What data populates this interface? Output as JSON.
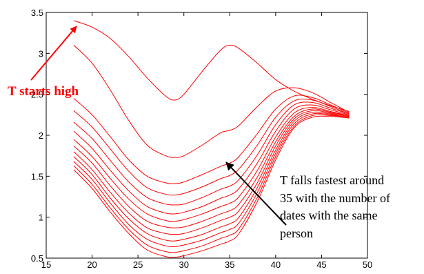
{
  "chart_data": {
    "type": "line",
    "title": "",
    "xlabel": "",
    "ylabel": "",
    "xlim": [
      15,
      50
    ],
    "ylim": [
      0.5,
      3.5
    ],
    "x_ticks": [
      "15",
      "20",
      "25",
      "30",
      "35",
      "40",
      "45",
      "50"
    ],
    "y_ticks": [
      "0.5",
      "1",
      "1.5",
      "2",
      "2.5",
      "3",
      "3.5"
    ],
    "grid": false,
    "legend": "none",
    "series_color": "#ff0000",
    "x": [
      18,
      20,
      22,
      24,
      26,
      28,
      29,
      30,
      32,
      34,
      35,
      36,
      38,
      40,
      42,
      44,
      46,
      48
    ],
    "series": [
      {
        "values": [
          3.4,
          3.32,
          3.18,
          2.96,
          2.7,
          2.48,
          2.43,
          2.5,
          2.78,
          3.04,
          3.1,
          3.06,
          2.88,
          2.68,
          2.54,
          2.44,
          2.36,
          2.29
        ]
      },
      {
        "values": [
          3.1,
          2.88,
          2.55,
          2.18,
          1.88,
          1.75,
          1.73,
          1.75,
          1.88,
          2.03,
          2.06,
          2.12,
          2.35,
          2.54,
          2.58,
          2.52,
          2.4,
          2.28
        ]
      },
      {
        "values": [
          2.45,
          2.25,
          1.98,
          1.7,
          1.5,
          1.42,
          1.41,
          1.43,
          1.52,
          1.62,
          1.66,
          1.74,
          2.02,
          2.32,
          2.48,
          2.46,
          2.37,
          2.27
        ]
      },
      {
        "values": [
          2.3,
          2.1,
          1.83,
          1.56,
          1.36,
          1.28,
          1.27,
          1.29,
          1.37,
          1.47,
          1.51,
          1.59,
          1.88,
          2.22,
          2.42,
          2.43,
          2.35,
          2.26
        ]
      },
      {
        "values": [
          2.16,
          1.96,
          1.69,
          1.43,
          1.24,
          1.16,
          1.15,
          1.16,
          1.24,
          1.34,
          1.38,
          1.46,
          1.76,
          2.13,
          2.37,
          2.4,
          2.33,
          2.26
        ]
      },
      {
        "values": [
          2.05,
          1.84,
          1.57,
          1.32,
          1.13,
          1.05,
          1.04,
          1.06,
          1.13,
          1.23,
          1.27,
          1.35,
          1.66,
          2.05,
          2.32,
          2.37,
          2.31,
          2.25
        ]
      },
      {
        "values": [
          1.95,
          1.74,
          1.47,
          1.22,
          1.04,
          0.96,
          0.95,
          0.97,
          1.04,
          1.13,
          1.17,
          1.25,
          1.57,
          1.98,
          2.27,
          2.34,
          2.29,
          2.24
        ]
      },
      {
        "values": [
          1.87,
          1.66,
          1.38,
          1.13,
          0.95,
          0.88,
          0.87,
          0.88,
          0.95,
          1.04,
          1.08,
          1.16,
          1.49,
          1.92,
          2.23,
          2.32,
          2.28,
          2.24
        ]
      },
      {
        "values": [
          1.8,
          1.58,
          1.3,
          1.05,
          0.87,
          0.8,
          0.79,
          0.8,
          0.87,
          0.96,
          1.0,
          1.08,
          1.42,
          1.87,
          2.2,
          2.3,
          2.27,
          2.23
        ]
      },
      {
        "values": [
          1.74,
          1.52,
          1.23,
          0.98,
          0.8,
          0.72,
          0.71,
          0.73,
          0.79,
          0.88,
          0.92,
          1.0,
          1.36,
          1.82,
          2.17,
          2.28,
          2.26,
          2.23
        ]
      },
      {
        "values": [
          1.68,
          1.46,
          1.17,
          0.91,
          0.73,
          0.65,
          0.64,
          0.66,
          0.72,
          0.81,
          0.85,
          0.93,
          1.3,
          1.78,
          2.14,
          2.26,
          2.25,
          2.22
        ]
      },
      {
        "values": [
          1.63,
          1.4,
          1.11,
          0.85,
          0.66,
          0.58,
          0.57,
          0.59,
          0.65,
          0.74,
          0.78,
          0.86,
          1.24,
          1.74,
          2.11,
          2.24,
          2.24,
          2.22
        ]
      },
      {
        "values": [
          1.58,
          1.35,
          1.06,
          0.8,
          0.6,
          0.52,
          0.51,
          0.53,
          0.59,
          0.67,
          0.71,
          0.8,
          1.19,
          1.7,
          2.09,
          2.22,
          2.23,
          2.21
        ]
      }
    ],
    "annotations": [
      {
        "text": "T starts high",
        "color": "#ff0000",
        "arrow_to": {
          "x": 18.3,
          "y": 3.33
        }
      },
      {
        "lines": [
          "T falls fastest around",
          "35 with the number of",
          "dates with the same",
          "person"
        ],
        "color": "#000000",
        "arrow_to": {
          "x": 34.6,
          "y": 1.67
        }
      }
    ]
  }
}
